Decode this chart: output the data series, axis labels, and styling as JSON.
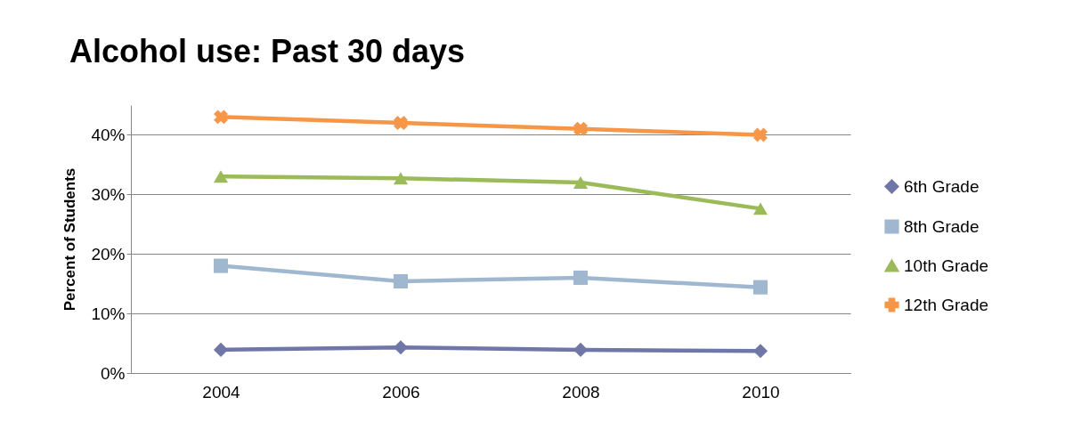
{
  "chart_data": {
    "type": "line",
    "title": "Alcohol use: Past 30 days",
    "ylabel": "Percent of Students",
    "categories": [
      "2004",
      "2006",
      "2008",
      "2010"
    ],
    "series": [
      {
        "name": "6th Grade",
        "color": "#6f77a8",
        "marker": "diamond",
        "values": [
          3.9,
          4.3,
          3.9,
          3.7
        ]
      },
      {
        "name": "8th Grade",
        "color": "#9fb8d0",
        "marker": "square",
        "values": [
          18,
          15.4,
          16,
          14.4
        ]
      },
      {
        "name": "10th Grade",
        "color": "#9bbb59",
        "marker": "triangle",
        "values": [
          33,
          32.7,
          32,
          27.6
        ]
      },
      {
        "name": "12th Grade",
        "color": "#f79646",
        "marker": "cross",
        "values": [
          43,
          42,
          41,
          40
        ]
      }
    ],
    "ylim": [
      0,
      45
    ],
    "yticks": [
      {
        "value": 0,
        "label": "0%"
      },
      {
        "value": 10,
        "label": "10%"
      },
      {
        "value": 20,
        "label": "20%"
      },
      {
        "value": 30,
        "label": "30%"
      },
      {
        "value": 40,
        "label": "40%"
      }
    ],
    "grid": "y",
    "legend": "right",
    "line_style": "solid"
  }
}
